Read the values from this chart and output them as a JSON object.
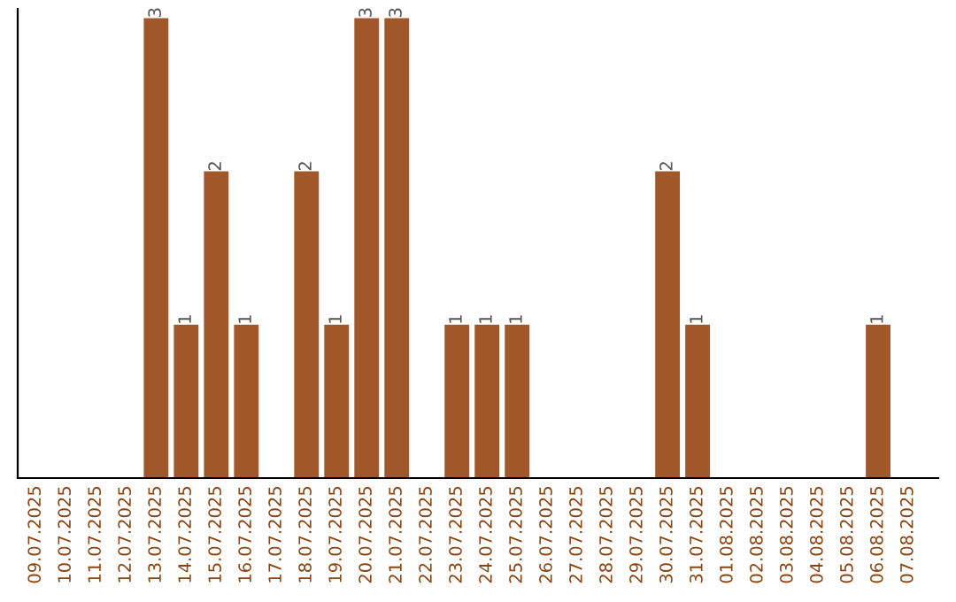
{
  "chart_data": {
    "type": "bar",
    "categories": [
      "09.07.2025",
      "10.07.2025",
      "11.07.2025",
      "12.07.2025",
      "13.07.2025",
      "14.07.2025",
      "15.07.2025",
      "16.07.2025",
      "17.07.2025",
      "18.07.2025",
      "19.07.2025",
      "20.07.2025",
      "21.07.2025",
      "22.07.2025",
      "23.07.2025",
      "24.07.2025",
      "25.07.2025",
      "26.07.2025",
      "27.07.2025",
      "28.07.2025",
      "29.07.2025",
      "30.07.2025",
      "31.07.2025",
      "01.08.2025",
      "02.08.2025",
      "03.08.2025",
      "04.08.2025",
      "05.08.2025",
      "06.08.2025",
      "07.08.2025"
    ],
    "values": [
      0,
      0,
      0,
      0,
      3,
      1,
      2,
      1,
      0,
      2,
      1,
      3,
      3,
      0,
      1,
      1,
      1,
      0,
      0,
      0,
      0,
      2,
      1,
      0,
      0,
      0,
      0,
      0,
      1,
      0
    ],
    "value_labels": [
      null,
      null,
      null,
      null,
      "3",
      "1",
      "2",
      "1",
      null,
      "2",
      "1",
      "3",
      "3",
      null,
      "1",
      "1",
      "1",
      null,
      null,
      null,
      null,
      "2",
      "1",
      null,
      null,
      null,
      null,
      null,
      "1",
      null
    ],
    "color": "#a0582a",
    "ylim": [
      0,
      3.06
    ],
    "tick_labels": "x",
    "grid": false,
    "legend": false
  }
}
